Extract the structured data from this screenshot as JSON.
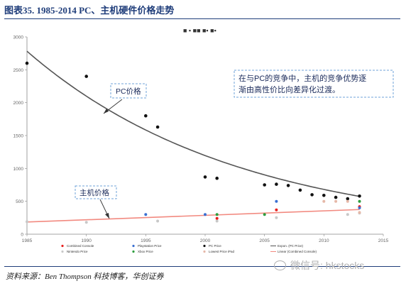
{
  "figure": {
    "title": "图表35. 1985-2014 PC、主机硬件价格走势",
    "source": "资料来源：Ben Thompson 科技博客，华创证券",
    "watermark": "微信号: hkstocks",
    "callout_text": [
      "在与PC的竞争中，主机的竞争优势逐",
      "渐由高性价比向差异化过渡。"
    ],
    "pc_label": "PC价格",
    "console_label": "主机价格",
    "inset_title": "■ ▪ ■■ ■▪ ■▪"
  },
  "colors": {
    "pc": "#111111",
    "combined": "#e8201e",
    "nintendo": "#c8c8c8",
    "playstation": "#3a6fd1",
    "xbox": "#2e9e3e",
    "ipad": "#e6b8a8",
    "expo_line": "#555555",
    "linear_line": "#f28a80",
    "accent": "#1f3d7a"
  },
  "chart_data": {
    "type": "scatter",
    "xlim": [
      1985,
      2015
    ],
    "ylim": [
      0,
      3000
    ],
    "x_ticks": [
      "1985",
      "1990",
      "1995",
      "2000",
      "2005",
      "2010",
      "2015"
    ],
    "y_ticks": [
      "0",
      "500",
      "1000",
      "1500",
      "2000",
      "2500",
      "3000"
    ],
    "grid": false,
    "legend_position": "bottom",
    "series": [
      {
        "name": "Combined Console",
        "color_key": "combined",
        "points": [
          [
            2001,
            240
          ],
          [
            2006,
            370
          ],
          [
            2013,
            420
          ]
        ]
      },
      {
        "name": "Nintendo Price",
        "color_key": "nintendo",
        "points": [
          [
            1985,
            190
          ],
          [
            1990,
            180
          ],
          [
            1996,
            200
          ],
          [
            2001,
            200
          ],
          [
            2006,
            250
          ],
          [
            2012,
            300
          ],
          [
            2013,
            320
          ]
        ]
      },
      {
        "name": "Playstation Price",
        "color_key": "playstation",
        "points": [
          [
            1995,
            300
          ],
          [
            2000,
            300
          ],
          [
            2006,
            500
          ],
          [
            2013,
            400
          ]
        ]
      },
      {
        "name": "Xbox Price",
        "color_key": "xbox",
        "points": [
          [
            2001,
            300
          ],
          [
            2005,
            300
          ],
          [
            2013,
            500
          ]
        ]
      },
      {
        "name": "PC Price",
        "color_key": "pc",
        "points": [
          [
            1985,
            2600
          ],
          [
            1990,
            2400
          ],
          [
            1995,
            1800
          ],
          [
            1996,
            1630
          ],
          [
            2000,
            870
          ],
          [
            2001,
            850
          ],
          [
            2005,
            750
          ],
          [
            2006,
            760
          ],
          [
            2007,
            740
          ],
          [
            2008,
            670
          ],
          [
            2009,
            600
          ],
          [
            2010,
            590
          ],
          [
            2011,
            560
          ],
          [
            2012,
            540
          ],
          [
            2013,
            580
          ]
        ]
      },
      {
        "name": "Lowest Price iPad",
        "color_key": "ipad",
        "points": [
          [
            2010,
            500
          ],
          [
            2011,
            500
          ],
          [
            2012,
            500
          ],
          [
            2013,
            330
          ]
        ]
      }
    ],
    "trendlines": [
      {
        "name": "Expon. (PC Price)",
        "color_key": "expo_line",
        "kind": "exponential",
        "a": 2781.9,
        "b": -0.0563,
        "x0": 1985,
        "x_range": [
          1985,
          2013
        ]
      },
      {
        "name": "Linear (Combined Console)",
        "color_key": "linear_line",
        "kind": "linear",
        "start": [
          1985,
          185
        ],
        "end": [
          2013,
          375
        ]
      }
    ]
  }
}
